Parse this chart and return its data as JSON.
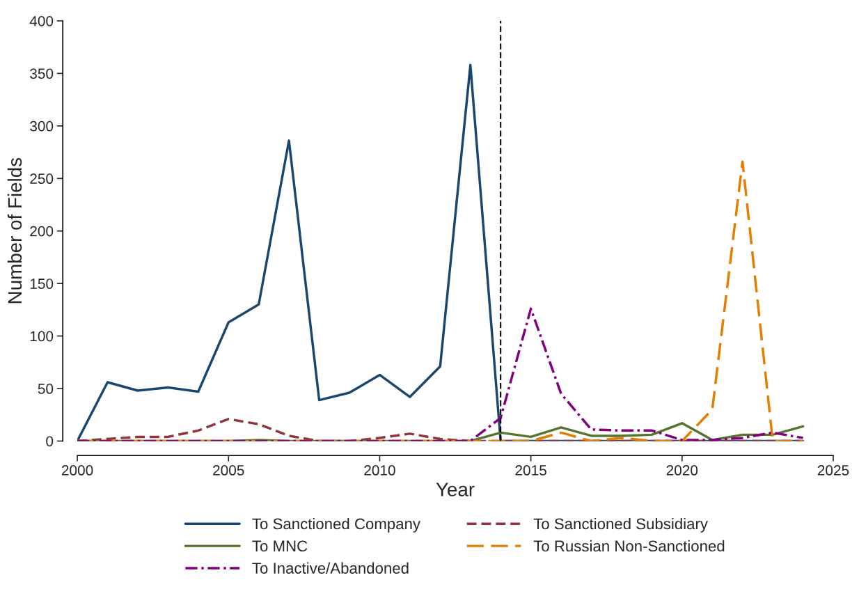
{
  "chart_data": {
    "type": "line",
    "xlabel": "Year",
    "ylabel": "Number of Fields",
    "x": [
      2000,
      2001,
      2002,
      2003,
      2004,
      2005,
      2006,
      2007,
      2008,
      2009,
      2010,
      2011,
      2012,
      2013,
      2014,
      2015,
      2016,
      2017,
      2018,
      2019,
      2020,
      2021,
      2022,
      2023,
      2024
    ],
    "series": [
      {
        "name": "To Sanctioned Company",
        "color": "#1a476f",
        "line_style": "solid",
        "values": [
          0,
          56,
          48,
          51,
          47,
          113,
          130,
          286,
          39,
          46,
          63,
          42,
          71,
          358,
          0,
          0,
          0,
          0,
          0,
          0,
          0,
          0,
          0,
          0,
          0
        ]
      },
      {
        "name": "To Sanctioned Subsidiary",
        "color": "#90353b",
        "line_style": "dashed",
        "values": [
          0,
          2,
          4,
          4,
          10,
          21,
          16,
          5,
          0,
          0,
          3,
          7,
          2,
          0,
          0,
          0,
          0,
          0,
          0,
          0,
          0,
          0,
          0,
          0,
          0
        ]
      },
      {
        "name": "To MNC",
        "color": "#55752f",
        "line_style": "solid",
        "values": [
          0,
          0,
          0,
          0,
          0,
          0,
          1,
          0,
          0,
          0,
          0,
          0,
          0,
          0,
          8,
          4,
          13,
          5,
          5,
          6,
          17,
          1,
          6,
          6,
          14
        ]
      },
      {
        "name": "To Russian Non-Sanctioned",
        "color": "#e37e00",
        "line_style": "longdash",
        "values": [
          0,
          0,
          0,
          0,
          0,
          0,
          0,
          0,
          0,
          0,
          0,
          0,
          0,
          0,
          0,
          0,
          8,
          0,
          3,
          0,
          0,
          30,
          266,
          0,
          0
        ]
      },
      {
        "name": "To Inactive/Abandoned",
        "color": "#800080",
        "line_style": "dashdot",
        "values": [
          0,
          0,
          0,
          0,
          0,
          0,
          0,
          0,
          0,
          0,
          0,
          0,
          0,
          0,
          22,
          126,
          45,
          11,
          10,
          10,
          1,
          1,
          3,
          8,
          3
        ]
      }
    ],
    "xlim": [
      2000,
      2025
    ],
    "xticks": [
      2000,
      2005,
      2010,
      2015,
      2020,
      2025
    ],
    "ylim": [
      0,
      400
    ],
    "yticks": [
      0,
      50,
      100,
      150,
      200,
      250,
      300,
      350,
      400
    ],
    "ref_lines": [
      {
        "axis": "x",
        "value": 2014,
        "color": "#000000",
        "line_style": "dashed"
      }
    ],
    "grid": false,
    "legend": "bottom",
    "marker": "none"
  }
}
